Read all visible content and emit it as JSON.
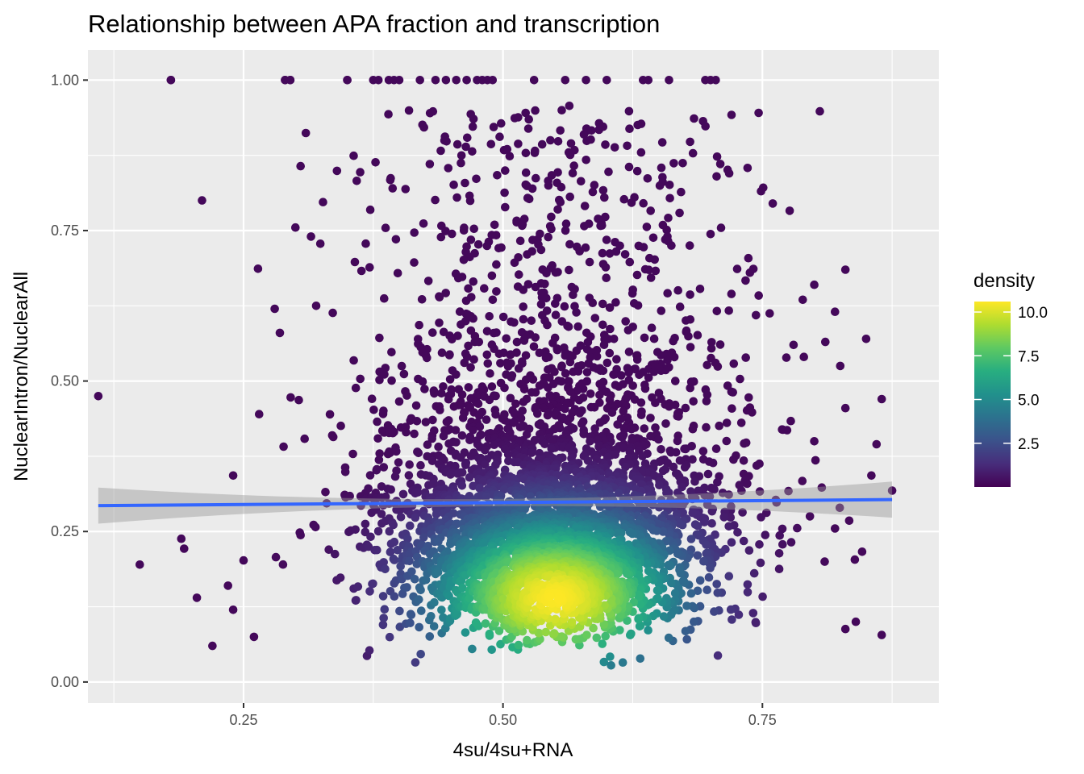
{
  "chart_data": {
    "type": "scatter",
    "title": "Relationship between APA fraction and transcription",
    "xlabel": "4su/4su+RNA",
    "ylabel": "NuclearIntron/NuclearAll",
    "xlim": [
      0.1,
      0.92
    ],
    "ylim": [
      -0.035,
      1.05
    ],
    "x_ticks": [
      0.25,
      0.5,
      0.75
    ],
    "x_tick_labels": [
      "0.25",
      "0.50",
      "0.75"
    ],
    "y_ticks": [
      0,
      0.25,
      0.5,
      0.75,
      1.0
    ],
    "y_tick_labels": [
      "0.00",
      "0.25",
      "0.50",
      "0.75",
      "1.00"
    ],
    "grid": true,
    "panel_background": "#ebebeb",
    "points_color_scale": "viridis",
    "cluster": {
      "center_x": 0.55,
      "center_y": 0.14,
      "n_points_approx": 4000
    },
    "outlier_points": [
      {
        "x": 0.11,
        "y": 0.475
      },
      {
        "x": 0.21,
        "y": 0.8
      },
      {
        "x": 0.18,
        "y": 1.0
      },
      {
        "x": 0.15,
        "y": 0.195
      },
      {
        "x": 0.19,
        "y": 0.238
      },
      {
        "x": 0.22,
        "y": 0.06
      },
      {
        "x": 0.205,
        "y": 0.14
      },
      {
        "x": 0.24,
        "y": 0.343
      },
      {
        "x": 0.265,
        "y": 0.445
      },
      {
        "x": 0.28,
        "y": 0.62
      },
      {
        "x": 0.285,
        "y": 0.58
      },
      {
        "x": 0.29,
        "y": 1.0
      },
      {
        "x": 0.295,
        "y": 1.0
      },
      {
        "x": 0.3,
        "y": 0.755
      },
      {
        "x": 0.31,
        "y": 0.912
      },
      {
        "x": 0.305,
        "y": 0.857
      },
      {
        "x": 0.315,
        "y": 0.74
      },
      {
        "x": 0.35,
        "y": 1.0
      },
      {
        "x": 0.32,
        "y": 0.625
      },
      {
        "x": 0.24,
        "y": 0.12
      },
      {
        "x": 0.235,
        "y": 0.16
      },
      {
        "x": 0.25,
        "y": 0.202
      },
      {
        "x": 0.26,
        "y": 0.075
      },
      {
        "x": 0.83,
        "y": 0.685
      },
      {
        "x": 0.8,
        "y": 0.66
      },
      {
        "x": 0.82,
        "y": 0.615
      },
      {
        "x": 0.85,
        "y": 0.57
      },
      {
        "x": 0.865,
        "y": 0.47
      },
      {
        "x": 0.86,
        "y": 0.395
      },
      {
        "x": 0.875,
        "y": 0.318
      },
      {
        "x": 0.855,
        "y": 0.343
      },
      {
        "x": 0.84,
        "y": 0.1
      },
      {
        "x": 0.865,
        "y": 0.078
      },
      {
        "x": 0.83,
        "y": 0.088
      },
      {
        "x": 0.81,
        "y": 0.2
      },
      {
        "x": 0.82,
        "y": 0.255
      },
      {
        "x": 0.76,
        "y": 0.795
      },
      {
        "x": 0.78,
        "y": 0.56
      },
      {
        "x": 0.79,
        "y": 0.54
      },
      {
        "x": 0.8,
        "y": 0.4
      },
      {
        "x": 0.825,
        "y": 0.525
      },
      {
        "x": 0.83,
        "y": 0.455
      }
    ],
    "top_row_points_x": [
      0.18,
      0.29,
      0.295,
      0.35,
      0.375,
      0.38,
      0.39,
      0.395,
      0.4,
      0.42,
      0.435,
      0.445,
      0.455,
      0.465,
      0.475,
      0.48,
      0.485,
      0.49,
      0.53,
      0.56,
      0.58,
      0.6,
      0.635,
      0.64,
      0.66,
      0.695,
      0.7,
      0.705
    ],
    "fit_line": {
      "x": [
        0.11,
        0.875
      ],
      "y": [
        0.293,
        0.303
      ],
      "ci_halfwidth_ends": 0.03,
      "ci_halfwidth_center": 0.006,
      "color": "#3366ff",
      "ci_color": "#999999"
    },
    "legend": {
      "title": "density",
      "placement": "right",
      "breaks": [
        2.5,
        5.0,
        7.5,
        10.0
      ],
      "break_labels": [
        "2.5",
        "5.0",
        "7.5",
        "10.0"
      ],
      "range": [
        0,
        10.6
      ]
    }
  }
}
